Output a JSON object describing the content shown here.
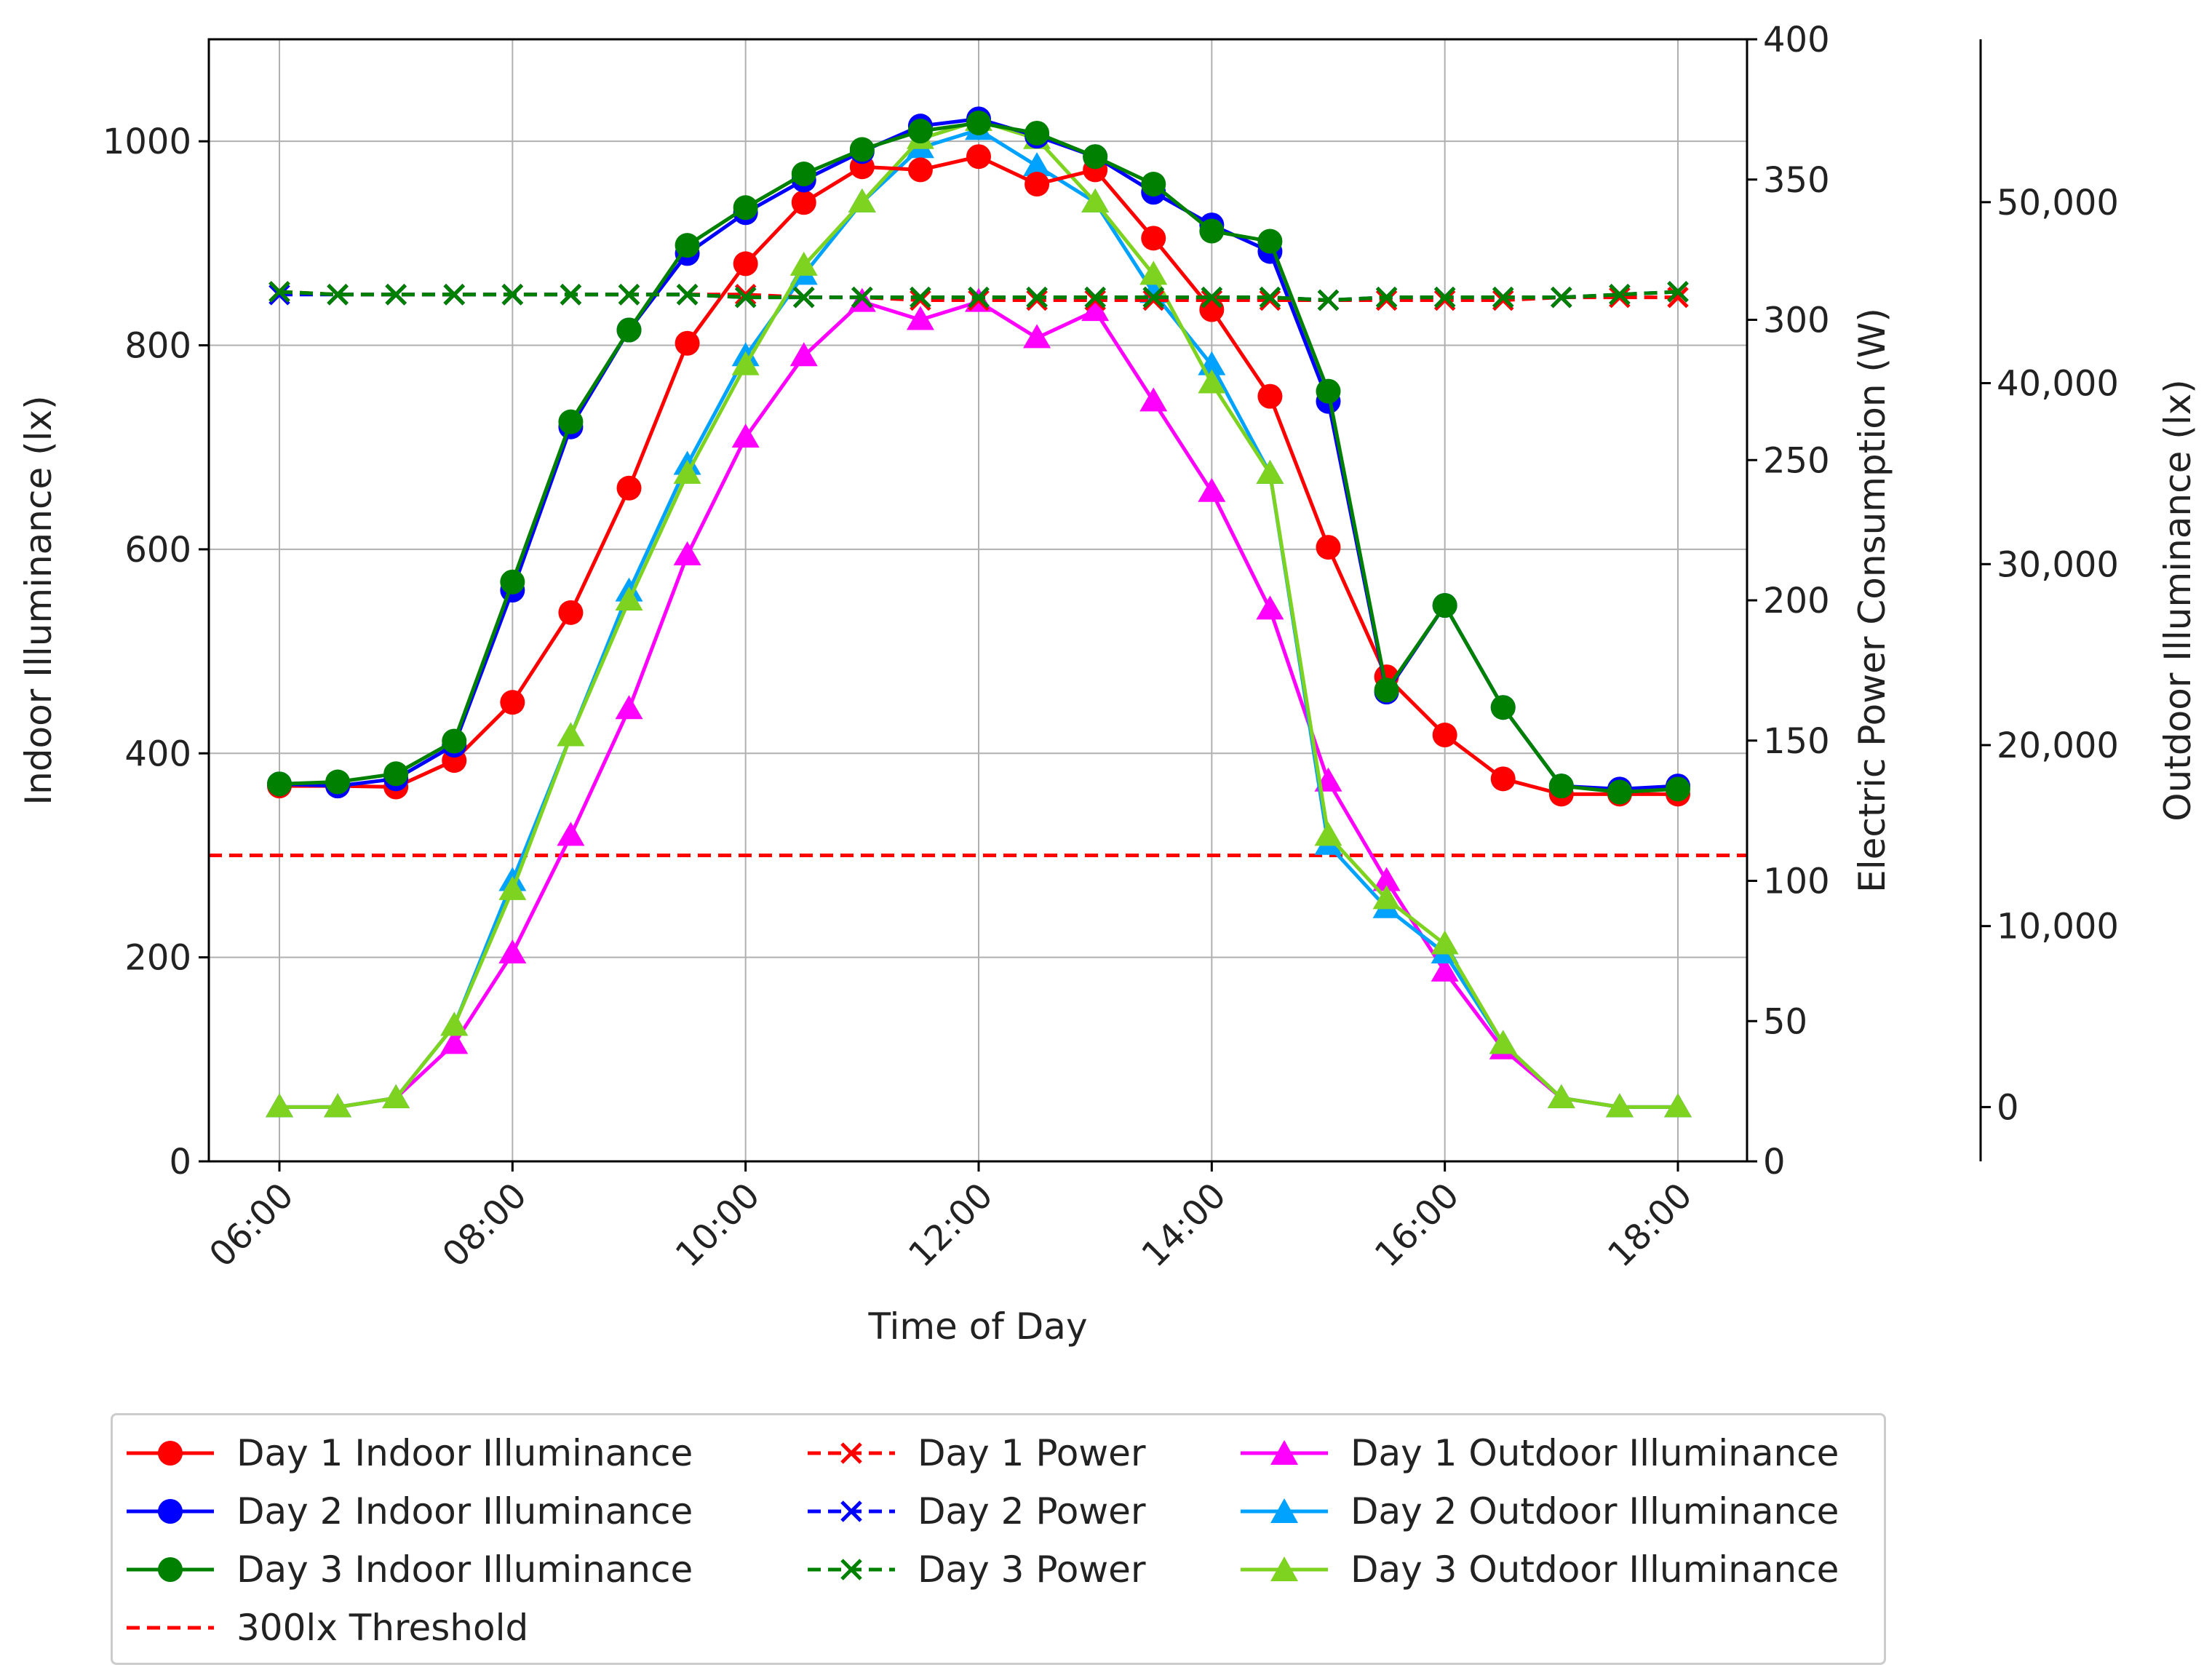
{
  "chart_data": {
    "type": "line",
    "title": "",
    "xlabel": "Time of Day",
    "ylabel_left": "Indoor Illuminance (lx)",
    "ylabel_right": "Electric Power Consumption (W)",
    "ylabel_outer": "Outdoor Illuminance (lx)",
    "x": [
      "06:00",
      "06:30",
      "07:00",
      "07:30",
      "08:00",
      "08:30",
      "09:00",
      "09:30",
      "10:00",
      "10:30",
      "11:00",
      "11:30",
      "12:00",
      "12:30",
      "13:00",
      "13:30",
      "14:00",
      "14:30",
      "15:00",
      "15:30",
      "16:00",
      "16:30",
      "17:00",
      "17:30",
      "18:00"
    ],
    "x_ticks": [
      "06:00",
      "08:00",
      "10:00",
      "12:00",
      "14:00",
      "16:00",
      "18:00"
    ],
    "ylim_left": [
      0,
      1100
    ],
    "yticks_left": [
      "0",
      "200",
      "400",
      "600",
      "800",
      "1000"
    ],
    "ylim_right": [
      0,
      400
    ],
    "yticks_right": [
      "0",
      "50",
      "100",
      "150",
      "200",
      "250",
      "300",
      "350",
      "400"
    ],
    "ylim_outer": [
      -3000,
      59000
    ],
    "yticks_outer": [
      "0",
      "10,000",
      "20,000",
      "30,000",
      "40,000",
      "50,000"
    ],
    "threshold": {
      "name": "300lx Threshold",
      "value": 300,
      "color": "#ff0000"
    },
    "series": [
      {
        "name": "Day 1 Indoor Illuminance",
        "axis": "left",
        "color": "#ff0000",
        "marker": "circle",
        "dash": "solid",
        "values": [
          368,
          368,
          367,
          393,
          450,
          538,
          660,
          802,
          880,
          940,
          975,
          972,
          985,
          958,
          972,
          905,
          835,
          750,
          602,
          475,
          418,
          375,
          360,
          360,
          360
        ]
      },
      {
        "name": "Day 2 Indoor Illuminance",
        "axis": "left",
        "color": "#0000ff",
        "marker": "circle",
        "dash": "solid",
        "values": [
          370,
          368,
          375,
          408,
          560,
          720,
          815,
          890,
          930,
          962,
          990,
          1015,
          1022,
          1005,
          985,
          950,
          918,
          892,
          745,
          460,
          545,
          445,
          368,
          365,
          368
        ]
      },
      {
        "name": "Day 3 Indoor Illuminance",
        "axis": "left",
        "color": "#008000",
        "marker": "circle",
        "dash": "solid",
        "values": [
          370,
          372,
          380,
          412,
          568,
          725,
          815,
          898,
          935,
          968,
          992,
          1010,
          1018,
          1008,
          985,
          958,
          912,
          902,
          755,
          462,
          545,
          445,
          368,
          362,
          365
        ]
      },
      {
        "name": "Day 1 Power",
        "axis": "right",
        "color": "#ff0000",
        "marker": "x",
        "dash": "dashed",
        "values": [
          310,
          309,
          309,
          309,
          309,
          309,
          309,
          309,
          309,
          308,
          308,
          307,
          307,
          307,
          307,
          307,
          307,
          307,
          307,
          307,
          307,
          307,
          308,
          308,
          308
        ]
      },
      {
        "name": "Day 2 Power",
        "axis": "right",
        "color": "#0000ff",
        "marker": "x",
        "dash": "dashed",
        "values": [
          309,
          309,
          309,
          309,
          309,
          309,
          309,
          309,
          308,
          308,
          308,
          308,
          308,
          308,
          308,
          308,
          308,
          308,
          307,
          308,
          308,
          308,
          308,
          309,
          310
        ]
      },
      {
        "name": "Day 3 Power",
        "axis": "right",
        "color": "#008000",
        "marker": "x",
        "dash": "dashed",
        "values": [
          310,
          309,
          309,
          309,
          309,
          309,
          309,
          309,
          308,
          308,
          308,
          308,
          308,
          308,
          308,
          308,
          308,
          308,
          307,
          308,
          308,
          308,
          308,
          309,
          310
        ]
      },
      {
        "name": "Day 1 Outdoor Illuminance",
        "axis": "outer",
        "color": "#ff00ff",
        "marker": "triangle",
        "dash": "solid",
        "values": [
          0,
          0,
          500,
          3500,
          8500,
          15000,
          22000,
          30500,
          37000,
          41500,
          44500,
          43500,
          44500,
          42500,
          44000,
          39000,
          34000,
          27500,
          18000,
          12500,
          7500,
          3200,
          500,
          0,
          0
        ]
      },
      {
        "name": "Day 2 Outdoor Illuminance",
        "axis": "outer",
        "color": "#00a2ff",
        "marker": "triangle",
        "dash": "solid",
        "values": [
          0,
          0,
          500,
          4500,
          12500,
          20500,
          28500,
          35500,
          41500,
          46000,
          50000,
          53000,
          54000,
          52000,
          50000,
          45000,
          41000,
          35000,
          14500,
          11000,
          8500,
          3500,
          500,
          0,
          0
        ]
      },
      {
        "name": "Day 3 Outdoor Illuminance",
        "axis": "outer",
        "color": "#7ed321",
        "marker": "triangle",
        "dash": "solid",
        "values": [
          0,
          0,
          500,
          4500,
          12000,
          20500,
          28000,
          35000,
          41000,
          46500,
          50000,
          53500,
          54500,
          53500,
          50000,
          46000,
          40000,
          35000,
          15000,
          11500,
          9000,
          3500,
          500,
          0,
          0
        ]
      }
    ]
  }
}
